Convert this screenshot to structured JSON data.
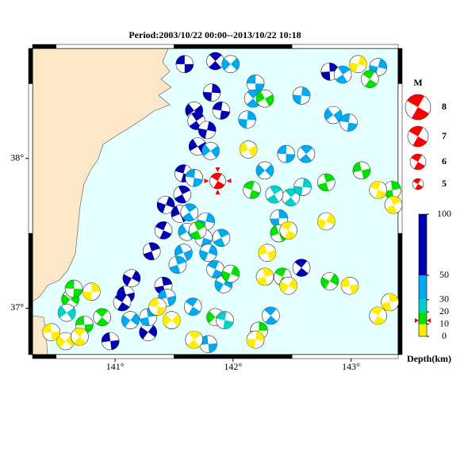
{
  "title": "Period:2003/10/22 00:00--2013/10/22 10:18",
  "map": {
    "xlim": [
      140.3,
      143.4
    ],
    "ylim": [
      36.69,
      38.735
    ],
    "xticks": [
      {
        "value": 141,
        "label": "141°"
      },
      {
        "value": 142,
        "label": "142°"
      },
      {
        "value": 143,
        "label": "143°"
      }
    ],
    "yticks": [
      {
        "value": 37,
        "label": "37°"
      },
      {
        "value": 38,
        "label": "38°"
      }
    ],
    "land_color": "#fde7c9",
    "sea_color": "#e6ffff",
    "events": {
      "lon": [
        141.59,
        141.85,
        141.82,
        141.67,
        141.9,
        141.69,
        141.78,
        141.7,
        141.58,
        141.57,
        141.43,
        141.55,
        141.41,
        141.31,
        141.14,
        141.09,
        141.06,
        141.41,
        141.28,
        140.96,
        142.58,
        142.82,
        141.98,
        142.19,
        142.17,
        142.12,
        141.81,
        141.67,
        141.63,
        141.77,
        141.61,
        141.75,
        141.9,
        141.79,
        141.58,
        141.85,
        141.53,
        141.92,
        141.44,
        141.66,
        141.28,
        141.13,
        141.79,
        142.32,
        142.39,
        142.27,
        142.45,
        142.62,
        142.58,
        142.85,
        142.98,
        142.93,
        143.23,
        142.27,
        142.16,
        141.7,
        141.98,
        142.39,
        142.42,
        142.79,
        142.82,
        143.09,
        143.16,
        143.35,
        140.62,
        140.74,
        140.89,
        142.22,
        141.85,
        140.65,
        142.49,
        142.59,
        140.59,
        141.93,
        142.35,
        143.06,
        142.13,
        143.23,
        143.36,
        142.79,
        142.29,
        142.47,
        142.27,
        142.47,
        142.99,
        143.23,
        143.33,
        140.58,
        140.46,
        140.7,
        140.8,
        141.48,
        141.36,
        141.67,
        142.19
      ],
      "lat": [
        38.63,
        38.65,
        38.44,
        38.32,
        38.32,
        38.25,
        38.19,
        38.08,
        37.9,
        37.76,
        37.69,
        37.63,
        37.52,
        37.38,
        37.2,
        37.09,
        37.04,
        37.15,
        36.84,
        36.78,
        37.27,
        38.58,
        38.63,
        38.5,
        38.4,
        38.26,
        38.05,
        37.87,
        37.64,
        37.58,
        37.51,
        37.47,
        37.47,
        37.37,
        37.37,
        37.26,
        37.29,
        37.16,
        37.07,
        37.01,
        36.94,
        36.92,
        36.76,
        36.95,
        37.6,
        37.92,
        38.03,
        38.03,
        38.42,
        38.29,
        38.24,
        38.56,
        38.61,
        38.4,
        37.79,
        37.52,
        37.23,
        37.5,
        37.21,
        37.84,
        37.18,
        37.92,
        38.53,
        37.79,
        37.06,
        36.89,
        36.94,
        36.85,
        36.94,
        37.13,
        37.74,
        37.81,
        36.97,
        36.92,
        37.76,
        38.63,
        38.06,
        37.79,
        37.69,
        37.58,
        37.37,
        37.52,
        37.21,
        37.15,
        37.15,
        36.95,
        37.04,
        36.78,
        36.84,
        36.81,
        37.11,
        36.92,
        37.01,
        36.79,
        36.79
      ],
      "depth": [
        70,
        70,
        70,
        70,
        70,
        70,
        70,
        70,
        70,
        70,
        70,
        70,
        70,
        70,
        70,
        70,
        70,
        70,
        70,
        70,
        70,
        70,
        40,
        40,
        40,
        40,
        40,
        40,
        40,
        40,
        40,
        40,
        40,
        40,
        40,
        40,
        40,
        40,
        40,
        40,
        40,
        40,
        40,
        40,
        40,
        40,
        40,
        40,
        40,
        40,
        40,
        40,
        40,
        15,
        15,
        15,
        15,
        15,
        15,
        15,
        15,
        15,
        15,
        15,
        15,
        15,
        15,
        15,
        15,
        15,
        25,
        25,
        25,
        25,
        25,
        5,
        5,
        5,
        5,
        5,
        5,
        5,
        5,
        5,
        5,
        5,
        5,
        5,
        5,
        5,
        5,
        5,
        5,
        5,
        5
      ]
    },
    "highlight": {
      "lon": 141.87,
      "lat": 37.85,
      "depth": 13,
      "color": "#ff0000"
    }
  },
  "magnitude_legend": {
    "title": "M",
    "values": [
      8,
      7,
      6,
      5
    ],
    "color": "#ff0000"
  },
  "depth_scale": {
    "label": "Depth(km)",
    "lim": [
      0,
      100
    ],
    "ticks": [
      0,
      10,
      20,
      30,
      50,
      100
    ],
    "bands": [
      {
        "from": 0,
        "to": 10,
        "color": "#ffee00"
      },
      {
        "from": 10,
        "to": 20,
        "color": "#00e000"
      },
      {
        "from": 20,
        "to": 30,
        "color": "#00d0c8"
      },
      {
        "from": 30,
        "to": 50,
        "color": "#00a8f0"
      },
      {
        "from": 50,
        "to": 100,
        "color": "#0000b0"
      }
    ]
  }
}
